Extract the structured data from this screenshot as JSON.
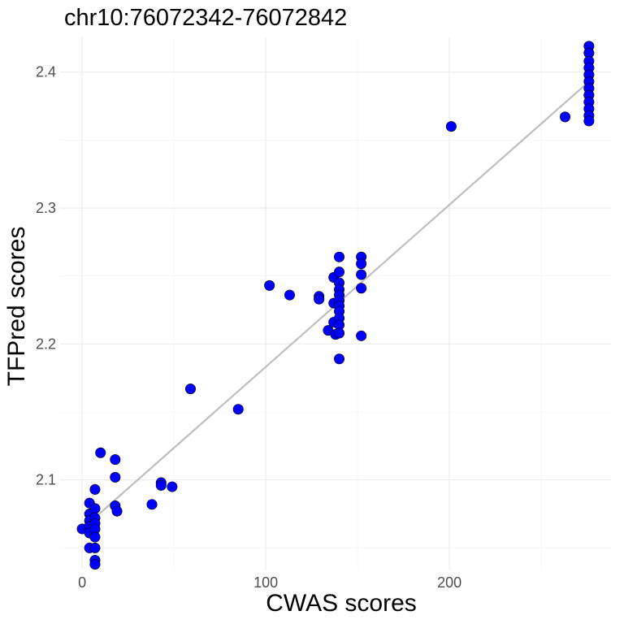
{
  "chart_data": {
    "type": "scatter",
    "title": "chr10:76072342-76072842",
    "xlabel": "CWAS scores",
    "ylabel": "TFPred scores",
    "xlim": [
      -12,
      288
    ],
    "ylim": [
      2.0335,
      2.4255
    ],
    "x_ticks": [
      0,
      100,
      200
    ],
    "x_tick_labels": [
      "0",
      "100",
      "200"
    ],
    "y_ticks": [
      2.1,
      2.2,
      2.3,
      2.4
    ],
    "y_tick_labels": [
      "2.1",
      "2.2",
      "2.3",
      "2.4"
    ],
    "grid": true,
    "point_color": "#0000ff",
    "point_edge_color": "#000000",
    "trend_line": {
      "color": "#bebebe",
      "x": [
        0,
        276
      ],
      "y": [
        2.064,
        2.393
      ]
    },
    "points": [
      {
        "x": 0,
        "y": 2.064
      },
      {
        "x": 4,
        "y": 2.083
      },
      {
        "x": 4,
        "y": 2.075
      },
      {
        "x": 4,
        "y": 2.07
      },
      {
        "x": 4,
        "y": 2.066
      },
      {
        "x": 4,
        "y": 2.061
      },
      {
        "x": 4,
        "y": 2.05
      },
      {
        "x": 7,
        "y": 2.093
      },
      {
        "x": 7,
        "y": 2.079
      },
      {
        "x": 7,
        "y": 2.072
      },
      {
        "x": 7,
        "y": 2.068
      },
      {
        "x": 7,
        "y": 2.064
      },
      {
        "x": 7,
        "y": 2.058
      },
      {
        "x": 7,
        "y": 2.05
      },
      {
        "x": 7,
        "y": 2.041
      },
      {
        "x": 7,
        "y": 2.038
      },
      {
        "x": 10,
        "y": 2.12
      },
      {
        "x": 18,
        "y": 2.115
      },
      {
        "x": 18,
        "y": 2.102
      },
      {
        "x": 18,
        "y": 2.081
      },
      {
        "x": 19,
        "y": 2.077
      },
      {
        "x": 38,
        "y": 2.082
      },
      {
        "x": 43,
        "y": 2.098
      },
      {
        "x": 43,
        "y": 2.096
      },
      {
        "x": 49,
        "y": 2.095
      },
      {
        "x": 59,
        "y": 2.167
      },
      {
        "x": 85,
        "y": 2.152
      },
      {
        "x": 102,
        "y": 2.243
      },
      {
        "x": 113,
        "y": 2.236
      },
      {
        "x": 129,
        "y": 2.235
      },
      {
        "x": 129,
        "y": 2.233
      },
      {
        "x": 134,
        "y": 2.21
      },
      {
        "x": 137,
        "y": 2.249
      },
      {
        "x": 137,
        "y": 2.23
      },
      {
        "x": 137,
        "y": 2.216
      },
      {
        "x": 138,
        "y": 2.207
      },
      {
        "x": 140,
        "y": 2.264
      },
      {
        "x": 140,
        "y": 2.253
      },
      {
        "x": 140,
        "y": 2.245
      },
      {
        "x": 140,
        "y": 2.24
      },
      {
        "x": 140,
        "y": 2.236
      },
      {
        "x": 140,
        "y": 2.232
      },
      {
        "x": 140,
        "y": 2.228
      },
      {
        "x": 140,
        "y": 2.224
      },
      {
        "x": 140,
        "y": 2.219
      },
      {
        "x": 140,
        "y": 2.214
      },
      {
        "x": 140,
        "y": 2.208
      },
      {
        "x": 140,
        "y": 2.189
      },
      {
        "x": 152,
        "y": 2.264
      },
      {
        "x": 152,
        "y": 2.259
      },
      {
        "x": 152,
        "y": 2.251
      },
      {
        "x": 152,
        "y": 2.241
      },
      {
        "x": 152,
        "y": 2.206
      },
      {
        "x": 201,
        "y": 2.36
      },
      {
        "x": 263,
        "y": 2.367
      },
      {
        "x": 276,
        "y": 2.419
      },
      {
        "x": 276,
        "y": 2.414
      },
      {
        "x": 276,
        "y": 2.408
      },
      {
        "x": 276,
        "y": 2.403
      },
      {
        "x": 276,
        "y": 2.398
      },
      {
        "x": 276,
        "y": 2.393
      },
      {
        "x": 276,
        "y": 2.388
      },
      {
        "x": 276,
        "y": 2.383
      },
      {
        "x": 276,
        "y": 2.378
      },
      {
        "x": 276,
        "y": 2.373
      },
      {
        "x": 276,
        "y": 2.368
      },
      {
        "x": 276,
        "y": 2.364
      }
    ]
  }
}
